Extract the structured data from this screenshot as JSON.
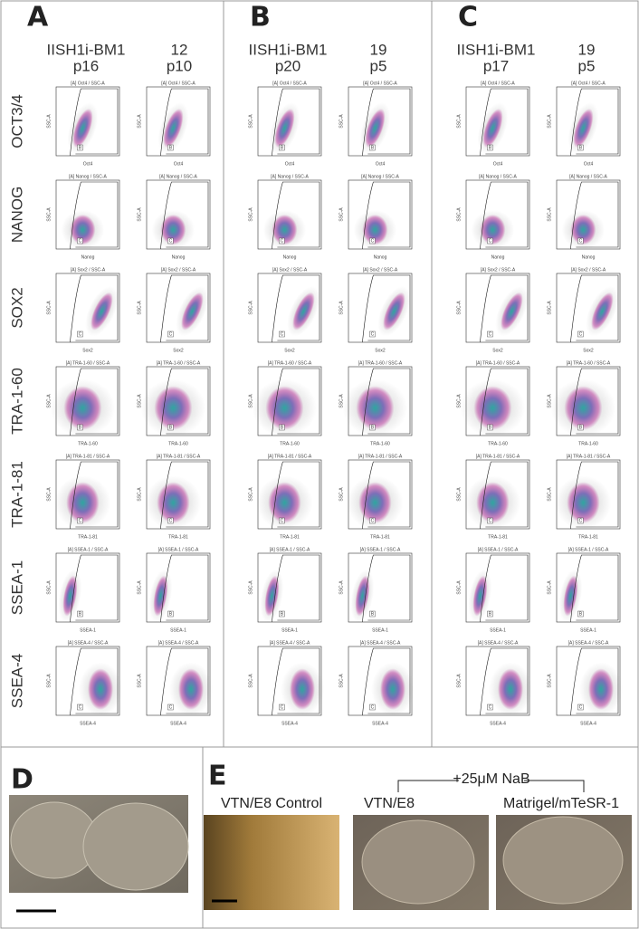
{
  "panels": [
    {
      "label": "A",
      "columns": [
        {
          "line1": "IISH1i-BM1",
          "line2": "p16"
        },
        {
          "line1": "12",
          "line2": "p10"
        }
      ]
    },
    {
      "label": "B",
      "columns": [
        {
          "line1": "IISH1i-BM1",
          "line2": "p20"
        },
        {
          "line1": "19",
          "line2": "p5"
        }
      ]
    },
    {
      "label": "C",
      "columns": [
        {
          "line1": "IISH1i-BM1",
          "line2": "p17"
        },
        {
          "line1": "19",
          "line2": "p5"
        }
      ]
    }
  ],
  "rows": [
    {
      "marker": "OCT3/4",
      "plot_title": "[A] Oct4 / SSC-A",
      "x_label": "Oct4",
      "gate": "B"
    },
    {
      "marker": "NANOG",
      "plot_title": "[A] Nanog / SSC-A",
      "x_label": "Nanog",
      "gate": "C"
    },
    {
      "marker": "SOX2",
      "plot_title": "[A] Sox2 / SSC-A",
      "x_label": "Sox2",
      "gate": "C"
    },
    {
      "marker": "TRA-1-60",
      "plot_title": "[A] TRA-1-60 / SSC-A",
      "x_label": "TRA-1-60",
      "gate": "B"
    },
    {
      "marker": "TRA-1-81",
      "plot_title": "[A] TRA-1-81 / SSC-A",
      "x_label": "TRA-1-81",
      "gate": "C"
    },
    {
      "marker": "SSEA-1",
      "plot_title": "[A] SSEA-1 / SSC-A",
      "x_label": "SSEA-1",
      "gate": "B"
    },
    {
      "marker": "SSEA-4",
      "plot_title": "[A] SSEA-4 / SSC-A",
      "x_label": "SSEA-4",
      "gate": "C"
    }
  ],
  "y_label": "SSC-A",
  "panel_d": {
    "label": "D"
  },
  "panel_e": {
    "label": "E",
    "control": "VTN/E8 Control",
    "treatment": "+25μM NaB",
    "conditions": [
      "VTN/E8",
      "Matrigel/mTeSR-1"
    ]
  }
}
